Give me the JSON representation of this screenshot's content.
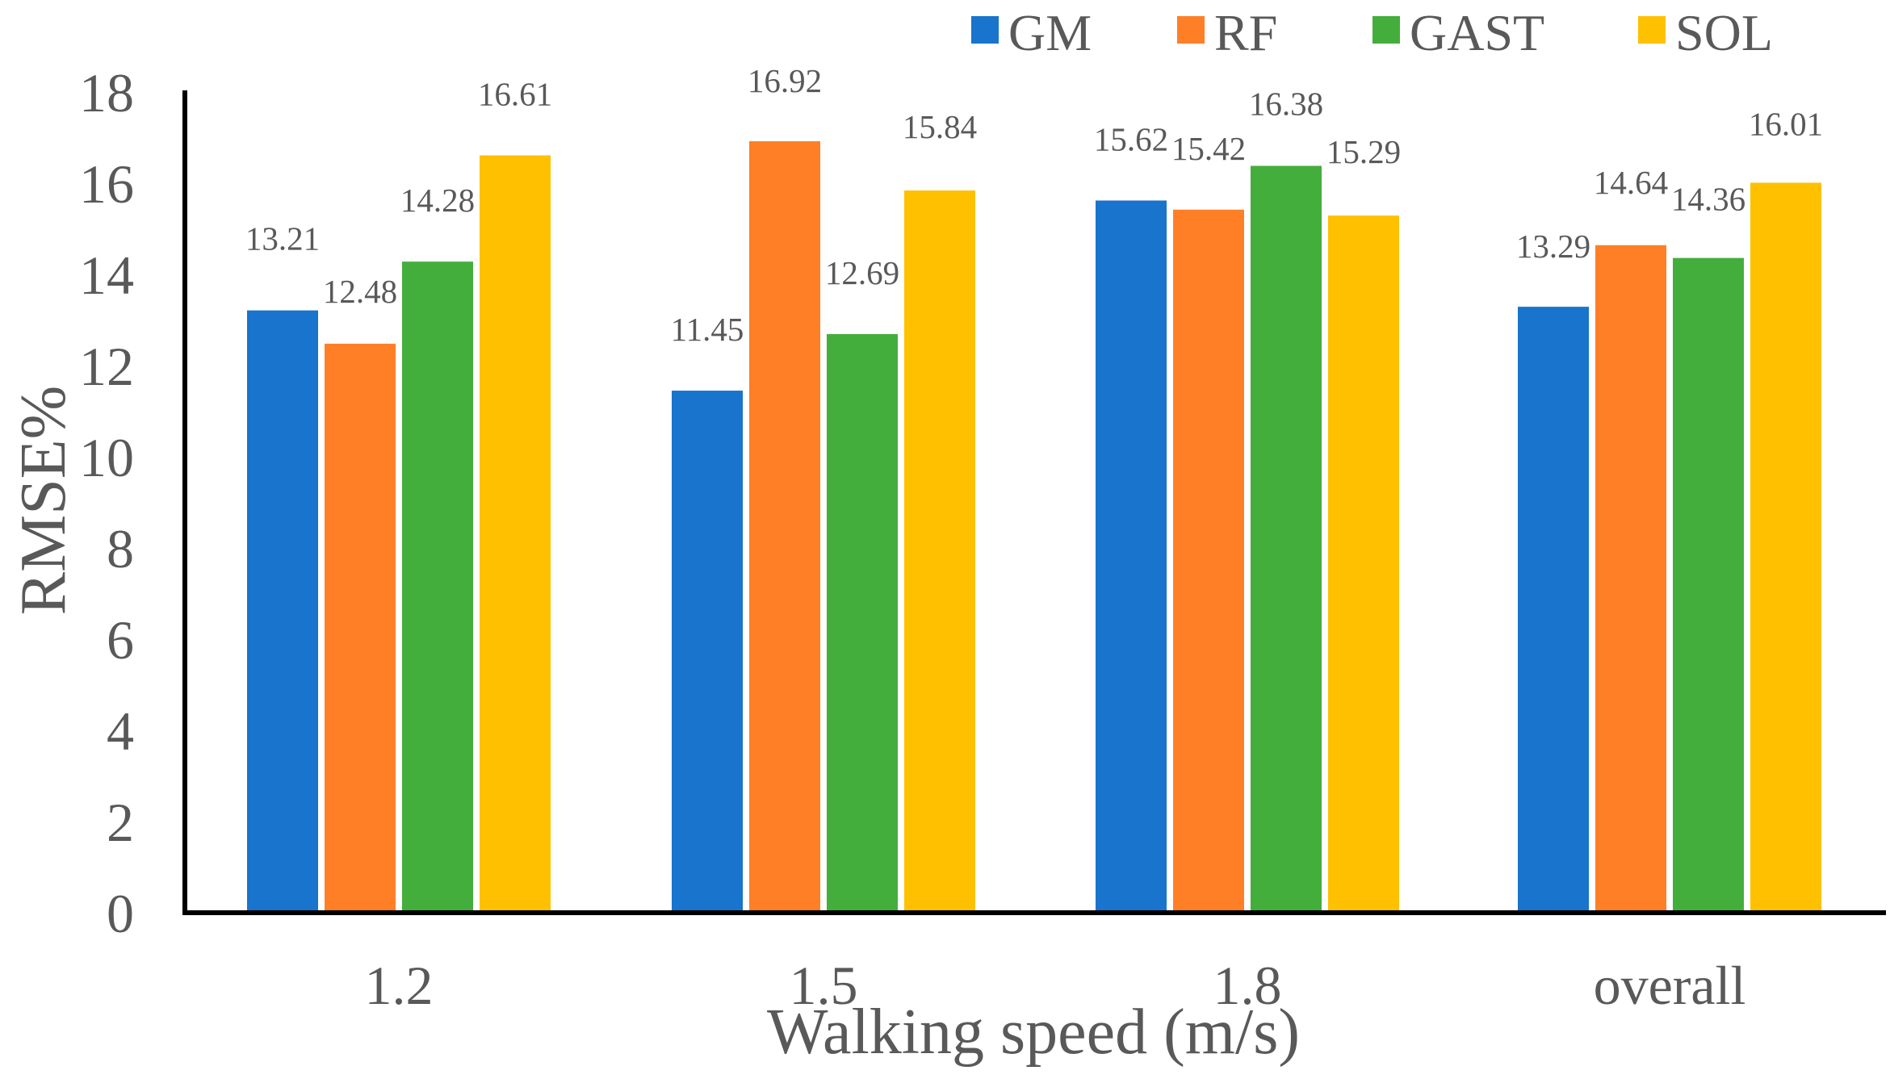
{
  "chart_data": {
    "type": "bar",
    "title": "",
    "xlabel": "Walking speed (m/s)",
    "ylabel": "RMSE%",
    "categories": [
      "1.2",
      "1.5",
      "1.8",
      "overall"
    ],
    "series": [
      {
        "name": "GM",
        "color": "#1874CD",
        "values": [
          13.21,
          11.45,
          15.62,
          13.29
        ]
      },
      {
        "name": "RF",
        "color": "#FF7F27",
        "values": [
          12.48,
          16.92,
          15.42,
          14.64
        ]
      },
      {
        "name": "GAST",
        "color": "#43AE3C",
        "values": [
          14.28,
          12.69,
          16.38,
          14.36
        ]
      },
      {
        "name": "SOL",
        "color": "#FFC000",
        "values": [
          16.61,
          15.84,
          15.29,
          16.01
        ]
      }
    ],
    "ylim": [
      0,
      18
    ],
    "yticks": [
      0,
      2,
      4,
      6,
      8,
      10,
      12,
      14,
      16,
      18
    ],
    "grid": false,
    "legend_position": "top-right"
  }
}
